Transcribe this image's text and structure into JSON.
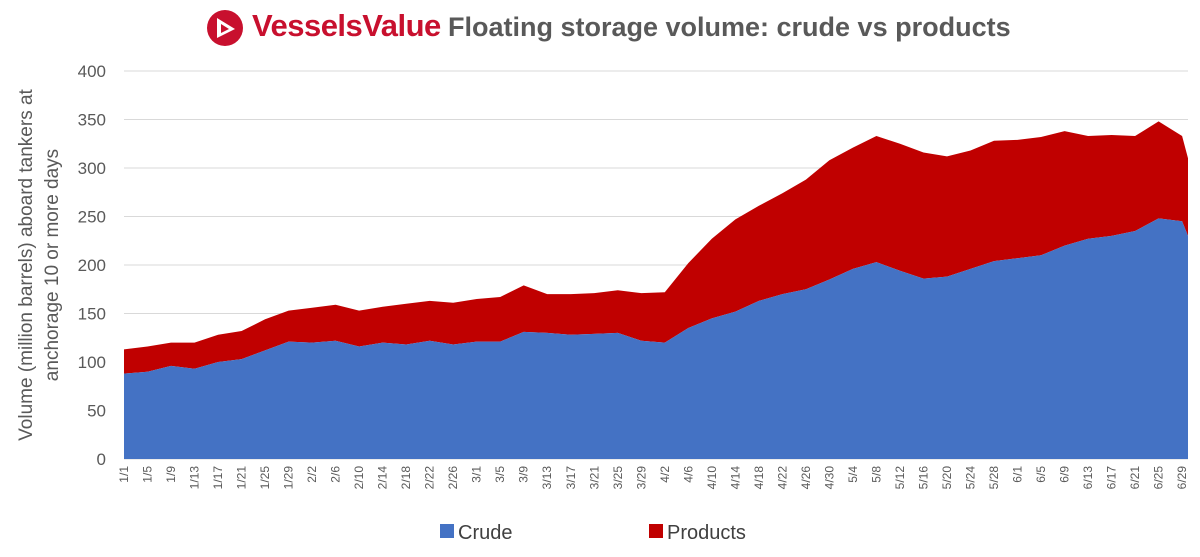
{
  "header": {
    "brand": "VesselsValue",
    "title": "Floating storage volume: crude vs products",
    "brand_color": "#c8102e"
  },
  "chart_data": {
    "type": "area",
    "stacked": true,
    "ylabel_line1": "Volume (million barrels) aboard tankers at",
    "ylabel_line2": "anchorage  10 or more days",
    "ylim": [
      0,
      400
    ],
    "yticks": [
      0,
      50,
      100,
      150,
      200,
      250,
      300,
      350,
      400
    ],
    "grid": true,
    "legend_position": "bottom",
    "x_start": "1/1",
    "x_end": "6/30",
    "x_tick_labels": [
      "1/1",
      "1/5",
      "1/9",
      "1/13",
      "1/17",
      "1/21",
      "1/25",
      "1/29",
      "2/2",
      "2/6",
      "2/10",
      "2/14",
      "2/18",
      "2/22",
      "2/26",
      "3/1",
      "3/5",
      "3/9",
      "3/13",
      "3/17",
      "3/21",
      "3/25",
      "3/29",
      "4/2",
      "4/6",
      "4/10",
      "4/14",
      "4/18",
      "4/22",
      "4/26",
      "4/30",
      "5/4",
      "5/8",
      "5/12",
      "5/16",
      "5/20",
      "5/24",
      "5/28",
      "6/1",
      "6/5",
      "6/9",
      "6/13",
      "6/17",
      "6/21",
      "6/25",
      "6/29"
    ],
    "series": [
      {
        "name": "Crude",
        "color": "#4472c4",
        "points": [
          [
            "1/1",
            88
          ],
          [
            "1/5",
            90
          ],
          [
            "1/9",
            96
          ],
          [
            "1/13",
            93
          ],
          [
            "1/17",
            100
          ],
          [
            "1/21",
            103
          ],
          [
            "1/25",
            112
          ],
          [
            "1/29",
            121
          ],
          [
            "2/2",
            120
          ],
          [
            "2/6",
            122
          ],
          [
            "2/10",
            116
          ],
          [
            "2/14",
            120
          ],
          [
            "2/18",
            118
          ],
          [
            "2/22",
            122
          ],
          [
            "2/26",
            118
          ],
          [
            "3/1",
            121
          ],
          [
            "3/5",
            121
          ],
          [
            "3/9",
            131
          ],
          [
            "3/13",
            130
          ],
          [
            "3/17",
            128
          ],
          [
            "3/21",
            129
          ],
          [
            "3/25",
            130
          ],
          [
            "3/29",
            122
          ],
          [
            "4/2",
            120
          ],
          [
            "4/6",
            135
          ],
          [
            "4/10",
            145
          ],
          [
            "4/14",
            152
          ],
          [
            "4/18",
            163
          ],
          [
            "4/22",
            170
          ],
          [
            "4/26",
            175
          ],
          [
            "4/30",
            185
          ],
          [
            "5/4",
            196
          ],
          [
            "5/8",
            203
          ],
          [
            "5/12",
            194
          ],
          [
            "5/16",
            186
          ],
          [
            "5/20",
            188
          ],
          [
            "5/24",
            196
          ],
          [
            "5/28",
            204
          ],
          [
            "6/1",
            207
          ],
          [
            "6/5",
            210
          ],
          [
            "6/9",
            220
          ],
          [
            "6/13",
            227
          ],
          [
            "6/17",
            230
          ],
          [
            "6/21",
            235
          ],
          [
            "6/25",
            248
          ],
          [
            "6/29",
            245
          ],
          [
            "6/30",
            230
          ]
        ]
      },
      {
        "name": "Products",
        "color": "#c00000",
        "points": [
          [
            "1/1",
            25
          ],
          [
            "1/5",
            26
          ],
          [
            "1/9",
            24
          ],
          [
            "1/13",
            27
          ],
          [
            "1/17",
            28
          ],
          [
            "1/21",
            29
          ],
          [
            "1/25",
            32
          ],
          [
            "1/29",
            32
          ],
          [
            "2/2",
            36
          ],
          [
            "2/6",
            37
          ],
          [
            "2/10",
            37
          ],
          [
            "2/14",
            37
          ],
          [
            "2/18",
            42
          ],
          [
            "2/22",
            41
          ],
          [
            "2/26",
            43
          ],
          [
            "3/1",
            44
          ],
          [
            "3/5",
            46
          ],
          [
            "3/9",
            48
          ],
          [
            "3/13",
            40
          ],
          [
            "3/17",
            42
          ],
          [
            "3/21",
            42
          ],
          [
            "3/25",
            44
          ],
          [
            "3/29",
            49
          ],
          [
            "4/2",
            52
          ],
          [
            "4/6",
            67
          ],
          [
            "4/10",
            82
          ],
          [
            "4/14",
            95
          ],
          [
            "4/18",
            98
          ],
          [
            "4/22",
            104
          ],
          [
            "4/26",
            113
          ],
          [
            "4/30",
            123
          ],
          [
            "5/4",
            125
          ],
          [
            "5/8",
            130
          ],
          [
            "5/12",
            131
          ],
          [
            "5/16",
            130
          ],
          [
            "5/20",
            124
          ],
          [
            "5/24",
            122
          ],
          [
            "5/28",
            124
          ],
          [
            "6/1",
            122
          ],
          [
            "6/5",
            122
          ],
          [
            "6/9",
            118
          ],
          [
            "6/13",
            106
          ],
          [
            "6/17",
            104
          ],
          [
            "6/21",
            98
          ],
          [
            "6/25",
            100
          ],
          [
            "6/29",
            88
          ],
          [
            "6/30",
            80
          ]
        ]
      }
    ]
  }
}
